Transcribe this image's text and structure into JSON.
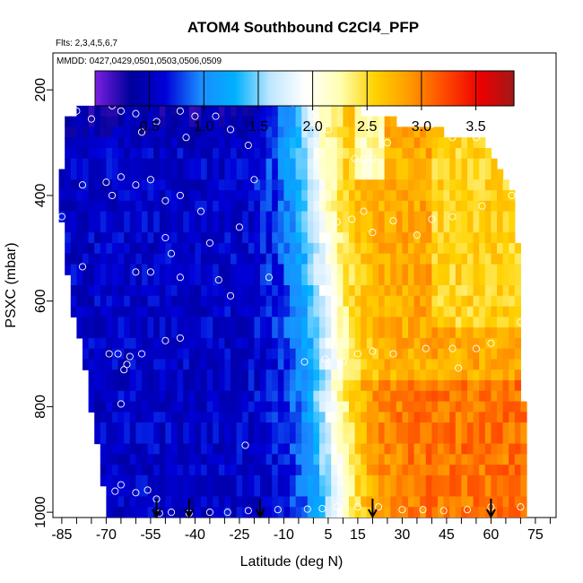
{
  "chart_data": {
    "type": "heatmap",
    "title": "ATOM4 Southbound C2Cl4_PFP",
    "subtitle_flights": "Flts: 2,3,4,5,6,7",
    "subtitle_dates": "MMDD: 0427,0429,0501,0503,0506,0509",
    "xlabel": "Latitude (deg N)",
    "ylabel": "PSXC (mbar)",
    "x_range": [
      -88,
      82
    ],
    "y_range": [
      1010,
      130
    ],
    "x_ticks": [
      -85,
      -70,
      -55,
      -40,
      -25,
      -10,
      5,
      15,
      30,
      45,
      60,
      75
    ],
    "x_tick_labels": [
      "-85",
      "-70",
      "-55",
      "-40",
      "-25",
      "-10",
      "5",
      "15",
      "30",
      "45",
      "60",
      "75"
    ],
    "x_minor_step": 5,
    "y_ticks": [
      200,
      400,
      600,
      800,
      1000
    ],
    "y_tick_labels": [
      "200",
      "400",
      "600",
      "800",
      "1000"
    ],
    "colorbar": {
      "min": 0.0,
      "max": 3.85,
      "ticks": [
        0.5,
        1.0,
        1.5,
        2.0,
        2.5,
        3.0,
        3.5
      ],
      "tick_labels": [
        "0.5",
        "1.0",
        "1.5",
        "2.0",
        "2.5",
        "3.0",
        "3.5"
      ],
      "boundaries": [
        0.5,
        1.0,
        1.5,
        2.0,
        2.5,
        3.0,
        3.5
      ],
      "colors": [
        "#7a1fe0",
        "#00009a",
        "#0000d8",
        "#1a8cff",
        "#00b0ff",
        "#bfe6ff",
        "#ffffff",
        "#ffffb3",
        "#ffd200",
        "#ff9a00",
        "#ff4a00",
        "#ee0000",
        "#a01818"
      ]
    },
    "field": {
      "description_levels": "mixing-ratio field by latitude and pressure",
      "lat_bounds_by_level": [
        {
          "p": 180,
          "lat_min": -55,
          "lat_max": -18
        },
        {
          "p": 250,
          "lat_min": -83,
          "lat_max": 21
        },
        {
          "p": 300,
          "lat_min": -84,
          "lat_max": 58
        },
        {
          "p": 400,
          "lat_min": -86,
          "lat_max": 68
        },
        {
          "p": 500,
          "lat_min": -84,
          "lat_max": 69
        },
        {
          "p": 600,
          "lat_min": -82,
          "lat_max": 70
        },
        {
          "p": 700,
          "lat_min": -78,
          "lat_max": 70
        },
        {
          "p": 800,
          "lat_min": -75,
          "lat_max": 71
        },
        {
          "p": 900,
          "lat_min": -72,
          "lat_max": 71
        },
        {
          "p": 1000,
          "lat_min": -70,
          "lat_max": 71
        }
      ]
    },
    "sample_points": [
      [
        -80,
        240
      ],
      [
        -75,
        255
      ],
      [
        -68,
        230
      ],
      [
        -67,
        222
      ],
      [
        -65,
        240
      ],
      [
        -62,
        210
      ],
      [
        -60,
        245
      ],
      [
        -58,
        280
      ],
      [
        -53,
        260
      ],
      [
        -50,
        205
      ],
      [
        -45,
        240
      ],
      [
        -43,
        290
      ],
      [
        -40,
        250
      ],
      [
        -33,
        250
      ],
      [
        -28,
        275
      ],
      [
        -22,
        305
      ],
      [
        -15,
        205
      ],
      [
        -7,
        225
      ],
      [
        0,
        250
      ],
      [
        5,
        275
      ],
      [
        -78,
        380
      ],
      [
        -70,
        375
      ],
      [
        -68,
        400
      ],
      [
        -65,
        365
      ],
      [
        -60,
        380
      ],
      [
        -55,
        370
      ],
      [
        -50,
        410
      ],
      [
        -45,
        400
      ],
      [
        -38,
        430
      ],
      [
        -25,
        460
      ],
      [
        -20,
        370
      ],
      [
        3,
        415
      ],
      [
        8,
        450
      ],
      [
        -85,
        440
      ],
      [
        -50,
        480
      ],
      [
        -48,
        510
      ],
      [
        -35,
        490
      ],
      [
        -60,
        545
      ],
      [
        -55,
        545
      ],
      [
        -45,
        555
      ],
      [
        -32,
        560
      ],
      [
        -28,
        590
      ],
      [
        -15,
        555
      ],
      [
        -78,
        535
      ],
      [
        -69,
        700
      ],
      [
        -66,
        700
      ],
      [
        -63,
        720
      ],
      [
        -62,
        705
      ],
      [
        -58,
        700
      ],
      [
        -50,
        675
      ],
      [
        -45,
        670
      ],
      [
        -64,
        730
      ],
      [
        -65,
        795
      ],
      [
        -23,
        873
      ],
      [
        -3,
        715
      ],
      [
        4,
        710
      ],
      [
        10,
        715
      ],
      [
        15,
        700
      ],
      [
        20,
        695
      ],
      [
        27,
        700
      ],
      [
        38,
        690
      ],
      [
        47,
        690
      ],
      [
        49,
        727
      ],
      [
        55,
        690
      ],
      [
        60,
        680
      ],
      [
        70,
        640
      ],
      [
        13,
        445
      ],
      [
        17,
        430
      ],
      [
        20,
        470
      ],
      [
        27,
        448
      ],
      [
        35,
        475
      ],
      [
        40,
        445
      ],
      [
        47,
        440
      ],
      [
        57,
        420
      ],
      [
        67,
        400
      ],
      [
        14,
        330
      ],
      [
        17,
        330
      ],
      [
        20,
        330
      ],
      [
        25,
        300
      ],
      [
        32,
        263
      ],
      [
        40,
        265
      ],
      [
        47,
        290
      ],
      [
        55,
        290
      ],
      [
        62,
        290
      ],
      [
        14,
        185
      ],
      [
        18,
        200
      ],
      [
        25,
        205
      ],
      [
        -67,
        960
      ],
      [
        -65,
        948
      ],
      [
        -60,
        963
      ],
      [
        -56,
        958
      ],
      [
        -53,
        975
      ],
      [
        -52,
        1002
      ],
      [
        -48,
        1000
      ],
      [
        -42,
        1002
      ],
      [
        -35,
        1000
      ],
      [
        -29,
        1000
      ],
      [
        -22,
        997
      ],
      [
        -12,
        995
      ],
      [
        -2,
        994
      ],
      [
        3,
        993
      ],
      [
        8,
        990
      ],
      [
        15,
        990
      ],
      [
        22,
        990
      ],
      [
        30,
        995
      ],
      [
        37,
        995
      ],
      [
        44,
        997
      ],
      [
        52,
        995
      ],
      [
        60,
        990
      ],
      [
        70,
        990
      ]
    ],
    "arrows_at_latitude": [
      -53,
      -42,
      -18,
      20,
      60
    ],
    "legend": "colorbar-top"
  }
}
